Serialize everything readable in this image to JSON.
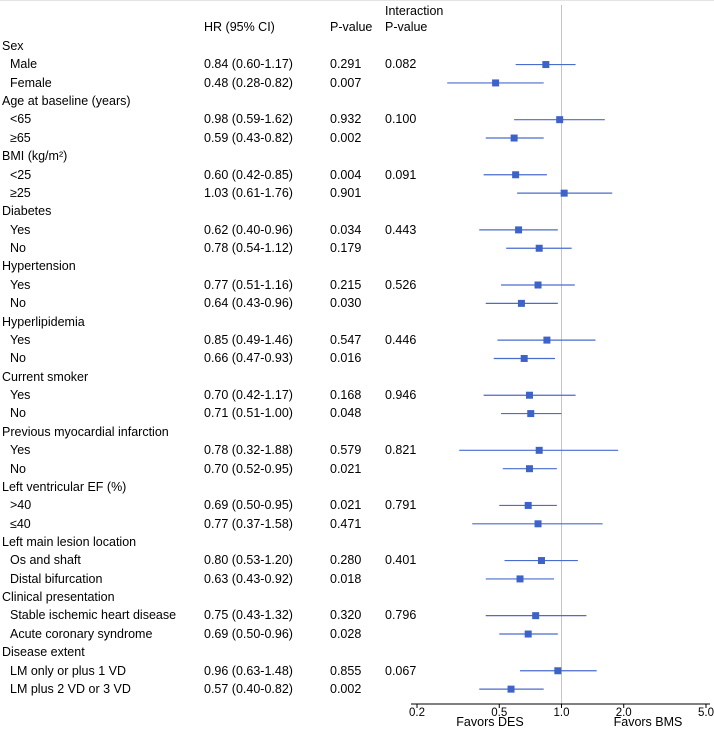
{
  "header": {
    "interaction_label": "Interaction",
    "hr_col": "HR (95% CI)",
    "p_col": "P-value",
    "interaction_p_col": "P-value"
  },
  "colors": {
    "marker": "#3e63c8",
    "ci_line": "#4a6ccd",
    "ref_line": "#c4c4c4",
    "axis": "#000000",
    "text": "#000000",
    "background": "#ffffff"
  },
  "chart_data": {
    "type": "forest",
    "x_scale": "log",
    "x_min": 0.2,
    "x_max": 5.0,
    "ref_line": 1.0,
    "x_ticks": [
      "0.2",
      "0.5",
      "1.0",
      "2.0",
      "5.0"
    ],
    "x_tick_values": [
      0.2,
      0.5,
      1.0,
      2.0,
      5.0
    ],
    "favors_left": "Favors DES",
    "favors_right": "Favors BMS",
    "groups": [
      {
        "label": "Sex",
        "interaction_p": "0.082",
        "rows": [
          {
            "label": "Male",
            "hr_text": "0.84 (0.60-1.17)",
            "p": "0.291",
            "hr": 0.84,
            "lo": 0.6,
            "hi": 1.17
          },
          {
            "label": "Female",
            "hr_text": "0.48 (0.28-0.82)",
            "p": "0.007",
            "hr": 0.48,
            "lo": 0.28,
            "hi": 0.82
          }
        ]
      },
      {
        "label": "Age at baseline (years)",
        "interaction_p": "0.100",
        "rows": [
          {
            "label": "<65",
            "hr_text": "0.98 (0.59-1.62)",
            "p": "0.932",
            "hr": 0.98,
            "lo": 0.59,
            "hi": 1.62
          },
          {
            "label": "≥65",
            "hr_text": "0.59 (0.43-0.82)",
            "p": "0.002",
            "hr": 0.59,
            "lo": 0.43,
            "hi": 0.82
          }
        ]
      },
      {
        "label": "BMI (kg/m²)",
        "interaction_p": "0.091",
        "rows": [
          {
            "label": "<25",
            "hr_text": "0.60 (0.42-0.85)",
            "p": "0.004",
            "hr": 0.6,
            "lo": 0.42,
            "hi": 0.85
          },
          {
            "label": "≥25",
            "hr_text": "1.03 (0.61-1.76)",
            "p": "0.901",
            "hr": 1.03,
            "lo": 0.61,
            "hi": 1.76
          }
        ]
      },
      {
        "label": "Diabetes",
        "interaction_p": "0.443",
        "rows": [
          {
            "label": "Yes",
            "hr_text": "0.62 (0.40-0.96)",
            "p": "0.034",
            "hr": 0.62,
            "lo": 0.4,
            "hi": 0.96
          },
          {
            "label": "No",
            "hr_text": "0.78 (0.54-1.12)",
            "p": "0.179",
            "hr": 0.78,
            "lo": 0.54,
            "hi": 1.12
          }
        ]
      },
      {
        "label": "Hypertension",
        "interaction_p": "0.526",
        "rows": [
          {
            "label": "Yes",
            "hr_text": "0.77 (0.51-1.16)",
            "p": "0.215",
            "hr": 0.77,
            "lo": 0.51,
            "hi": 1.16
          },
          {
            "label": "No",
            "hr_text": "0.64 (0.43-0.96)",
            "p": "0.030",
            "hr": 0.64,
            "lo": 0.43,
            "hi": 0.96
          }
        ]
      },
      {
        "label": "Hyperlipidemia",
        "interaction_p": "0.446",
        "rows": [
          {
            "label": "Yes",
            "hr_text": "0.85 (0.49-1.46)",
            "p": "0.547",
            "hr": 0.85,
            "lo": 0.49,
            "hi": 1.46
          },
          {
            "label": "No",
            "hr_text": "0.66 (0.47-0.93)",
            "p": "0.016",
            "hr": 0.66,
            "lo": 0.47,
            "hi": 0.93
          }
        ]
      },
      {
        "label": "Current smoker",
        "interaction_p": "0.946",
        "rows": [
          {
            "label": "Yes",
            "hr_text": "0.70 (0.42-1.17)",
            "p": "0.168",
            "hr": 0.7,
            "lo": 0.42,
            "hi": 1.17
          },
          {
            "label": "No",
            "hr_text": "0.71 (0.51-1.00)",
            "p": "0.048",
            "hr": 0.71,
            "lo": 0.51,
            "hi": 1.0
          }
        ]
      },
      {
        "label": "Previous myocardial infarction",
        "interaction_p": "0.821",
        "rows": [
          {
            "label": "Yes",
            "hr_text": "0.78 (0.32-1.88)",
            "p": "0.579",
            "hr": 0.78,
            "lo": 0.32,
            "hi": 1.88
          },
          {
            "label": "No",
            "hr_text": "0.70 (0.52-0.95)",
            "p": "0.021",
            "hr": 0.7,
            "lo": 0.52,
            "hi": 0.95
          }
        ]
      },
      {
        "label": "Left ventricular EF (%)",
        "interaction_p": "0.791",
        "rows": [
          {
            "label": ">40",
            "hr_text": "0.69 (0.50-0.95)",
            "p": "0.021",
            "hr": 0.69,
            "lo": 0.5,
            "hi": 0.95
          },
          {
            "label": "≤40",
            "hr_text": "0.77 (0.37-1.58)",
            "p": "0.471",
            "hr": 0.77,
            "lo": 0.37,
            "hi": 1.58
          }
        ]
      },
      {
        "label": "Left main lesion location",
        "interaction_p": "0.401",
        "rows": [
          {
            "label": "Os and shaft",
            "hr_text": "0.80 (0.53-1.20)",
            "p": "0.280",
            "hr": 0.8,
            "lo": 0.53,
            "hi": 1.2
          },
          {
            "label": "Distal bifurcation",
            "hr_text": "0.63 (0.43-0.92)",
            "p": "0.018",
            "hr": 0.63,
            "lo": 0.43,
            "hi": 0.92
          }
        ]
      },
      {
        "label": "Clinical presentation",
        "interaction_p": "0.796",
        "rows": [
          {
            "label": "Stable ischemic heart disease",
            "hr_text": "0.75 (0.43-1.32)",
            "p": "0.320",
            "hr": 0.75,
            "lo": 0.43,
            "hi": 1.32
          },
          {
            "label": "Acute coronary syndrome",
            "hr_text": "0.69 (0.50-0.96)",
            "p": "0.028",
            "hr": 0.69,
            "lo": 0.5,
            "hi": 0.96
          }
        ]
      },
      {
        "label": "Disease extent",
        "interaction_p": "0.067",
        "rows": [
          {
            "label": "LM only or plus 1 VD",
            "hr_text": "0.96 (0.63-1.48)",
            "p": "0.855",
            "hr": 0.96,
            "lo": 0.63,
            "hi": 1.48
          },
          {
            "label": "LM plus 2 VD or 3 VD",
            "hr_text": "0.57 (0.40-0.82)",
            "p": "0.002",
            "hr": 0.57,
            "lo": 0.4,
            "hi": 0.82
          }
        ]
      }
    ]
  }
}
